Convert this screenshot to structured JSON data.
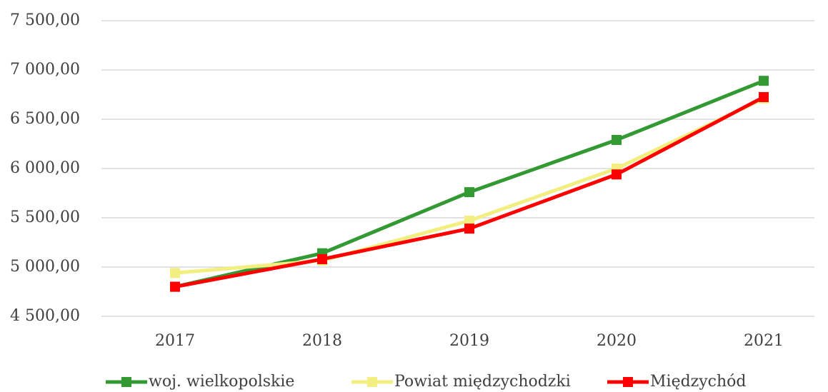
{
  "chart_data": {
    "type": "line",
    "categories": [
      "2017",
      "2018",
      "2019",
      "2020",
      "2021"
    ],
    "series": [
      {
        "name": "woj. wielkopolskie",
        "color": "#339933",
        "values": [
          4800,
          5140,
          5760,
          6290,
          6890
        ]
      },
      {
        "name": "Powiat międzychodzki",
        "color": "#f2ee80",
        "values": [
          4940,
          5065,
          5470,
          6000,
          6710
        ]
      },
      {
        "name": "Międzychód",
        "color": "#ff0000",
        "values": [
          4800,
          5080,
          5390,
          5940,
          6725
        ]
      }
    ],
    "ylim": [
      4500,
      7500
    ],
    "yticks": [
      {
        "value": 4500,
        "label": "4 500,00"
      },
      {
        "value": 5000,
        "label": "5 000,00"
      },
      {
        "value": 5500,
        "label": "5 500,00"
      },
      {
        "value": 6000,
        "label": "6 000,00"
      },
      {
        "value": 6500,
        "label": "6 500,00"
      },
      {
        "value": 7000,
        "label": "7 000,00"
      },
      {
        "value": 7500,
        "label": "7 500,00"
      }
    ],
    "grid": true,
    "legend": "bottom"
  }
}
